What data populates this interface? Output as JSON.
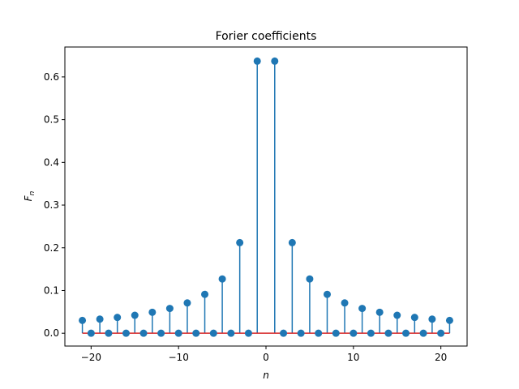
{
  "chart_data": {
    "type": "stem",
    "title": "Forier coefficients",
    "xlabel": "n",
    "ylabel_main": "F",
    "ylabel_sub": "n",
    "xlim": [
      -23,
      23
    ],
    "ylim": [
      -0.03,
      0.67
    ],
    "xticks": [
      -20,
      -10,
      0,
      10,
      20
    ],
    "xtick_labels": [
      "−20",
      "−10",
      "0",
      "10",
      "20"
    ],
    "yticks": [
      0.0,
      0.1,
      0.2,
      0.3,
      0.4,
      0.5,
      0.6
    ],
    "ytick_labels": [
      "0.0",
      "0.1",
      "0.2",
      "0.3",
      "0.4",
      "0.5",
      "0.6"
    ],
    "grid": false,
    "colors": {
      "stem": "#1f77b4",
      "baseline": "#d62728"
    },
    "baseline": 0.0,
    "series": [
      {
        "x": [
          -21,
          -20,
          -19,
          -18,
          -17,
          -16,
          -15,
          -14,
          -13,
          -12,
          -11,
          -10,
          -9,
          -8,
          -7,
          -6,
          -5,
          -4,
          -3,
          -2,
          -1,
          1,
          2,
          3,
          4,
          5,
          6,
          7,
          8,
          9,
          10,
          11,
          12,
          13,
          14,
          15,
          16,
          17,
          18,
          19,
          20,
          21
        ],
        "values": [
          0.03,
          0.0,
          0.033,
          0.0,
          0.037,
          0.0,
          0.042,
          0.0,
          0.049,
          0.0,
          0.058,
          0.0,
          0.071,
          0.0,
          0.091,
          0.0,
          0.127,
          0.0,
          0.212,
          0.0,
          0.637,
          0.637,
          0.0,
          0.212,
          0.0,
          0.127,
          0.0,
          0.091,
          0.0,
          0.071,
          0.0,
          0.058,
          0.0,
          0.049,
          0.0,
          0.042,
          0.0,
          0.037,
          0.0,
          0.033,
          0.0,
          0.03
        ]
      }
    ]
  }
}
